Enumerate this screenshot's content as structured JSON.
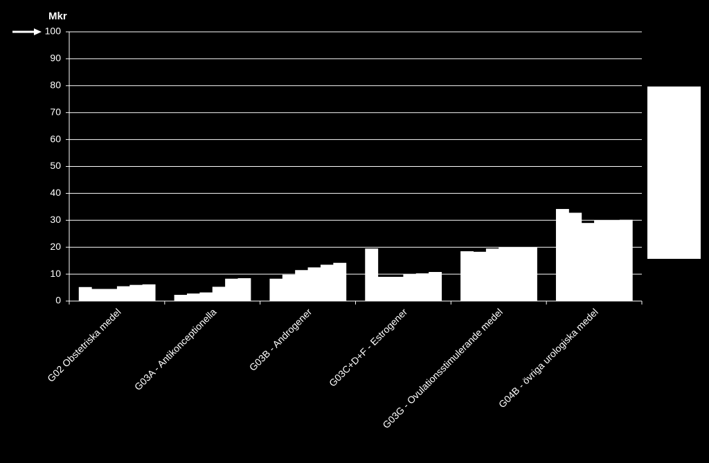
{
  "chart_data": {
    "type": "bar",
    "y_label": "Mkr",
    "categories": [
      "G02 Obstetriska medel",
      "G03A - Antikonceptionella",
      "G03B - Androgener",
      "G03C+D+F - Estrogener",
      "G03G - Ovulationsstimulerande medel",
      "G04B - övriga urologiska medel"
    ],
    "series": [
      {
        "color": "#ffffff",
        "values": [
          5.2,
          2.3,
          8.3,
          19.5,
          18.5,
          34.2
        ]
      },
      {
        "color": "#ffffff",
        "values": [
          4.5,
          2.8,
          9.8,
          9.0,
          18.3,
          32.8
        ]
      },
      {
        "color": "#ffffff",
        "values": [
          4.5,
          3.2,
          11.5,
          9.0,
          19.5,
          29.0
        ]
      },
      {
        "color": "#ffffff",
        "values": [
          5.5,
          5.3,
          12.5,
          10.0,
          20.0,
          30.0
        ]
      },
      {
        "color": "#ffffff",
        "values": [
          6.0,
          8.3,
          13.5,
          10.3,
          20.0,
          30.0
        ]
      },
      {
        "color": "#ffffff",
        "values": [
          6.2,
          8.5,
          14.2,
          10.8,
          20.0,
          30.2
        ]
      }
    ],
    "ylim": [
      0,
      100
    ],
    "yticks": [
      0,
      10,
      20,
      30,
      40,
      50,
      60,
      70,
      80,
      90,
      100
    ],
    "grid": true
  }
}
